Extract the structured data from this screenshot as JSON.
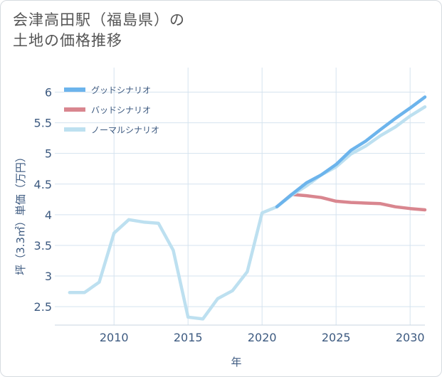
{
  "title_line1": "会津高田駅（福島県）の",
  "title_line2": "土地の価格推移",
  "chart_data": {
    "type": "line",
    "title": "会津高田駅（福島県）の土地の価格推移",
    "xlabel": "年",
    "ylabel": "坪（3.3㎡）単価（万円）",
    "xlim": [
      2006,
      2031
    ],
    "ylim": [
      2.2,
      6.4
    ],
    "xticks": [
      2010,
      2015,
      2020,
      2025,
      2030
    ],
    "yticks": [
      2.5,
      3,
      3.5,
      4,
      4.5,
      5,
      5.5,
      6
    ],
    "xtick_labels": [
      "2010",
      "2015",
      "2020",
      "2025",
      "2030"
    ],
    "ytick_labels": [
      "2.5",
      "3",
      "3.5",
      "4",
      "4.5",
      "5",
      "5.5",
      "6"
    ],
    "series": [
      {
        "name": "グッドシナリオ",
        "color": "#6cb4ec",
        "x": [
          2021,
          2022,
          2023,
          2024,
          2025,
          2026,
          2027,
          2028,
          2029,
          2030,
          2031
        ],
        "values": [
          4.13,
          4.33,
          4.52,
          4.65,
          4.82,
          5.05,
          5.2,
          5.39,
          5.57,
          5.74,
          5.92
        ]
      },
      {
        "name": "バッドシナリオ",
        "color": "#d9868f",
        "x": [
          2021,
          2022,
          2023,
          2024,
          2025,
          2026,
          2027,
          2028,
          2029,
          2030,
          2031
        ],
        "values": [
          4.13,
          4.33,
          4.31,
          4.28,
          4.22,
          4.2,
          4.19,
          4.18,
          4.13,
          4.1,
          4.08
        ]
      },
      {
        "name": "ノーマルシナリオ",
        "color": "#bde0f0",
        "x": [
          2007,
          2008,
          2009,
          2010,
          2011,
          2012,
          2013,
          2014,
          2015,
          2016,
          2017,
          2018,
          2019,
          2020,
          2021,
          2022,
          2023,
          2024,
          2025,
          2026,
          2027,
          2028,
          2029,
          2030,
          2031
        ],
        "values": [
          2.73,
          2.73,
          2.9,
          3.7,
          3.92,
          3.88,
          3.86,
          3.42,
          2.33,
          2.3,
          2.63,
          2.76,
          3.07,
          4.03,
          4.13,
          4.32,
          4.47,
          4.65,
          4.78,
          4.99,
          5.12,
          5.29,
          5.43,
          5.61,
          5.76
        ]
      }
    ],
    "legend": "top-left"
  }
}
